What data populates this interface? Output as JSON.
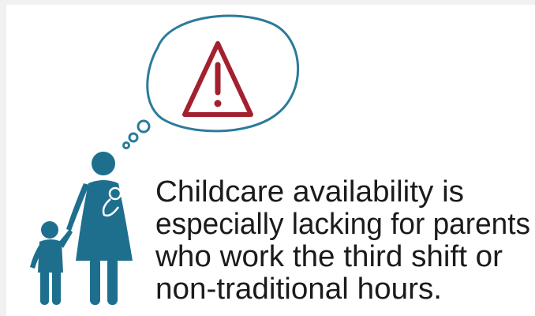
{
  "message": {
    "lines": [
      "Childcare availability is",
      "especially lacking for parents",
      "who work the third shift or",
      "non-traditional hours."
    ]
  }
}
